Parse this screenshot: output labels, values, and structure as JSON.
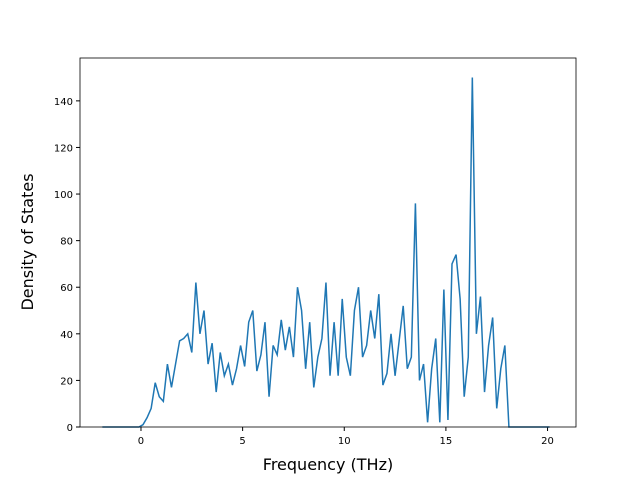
{
  "chart_data": {
    "type": "line",
    "x_label": "Frequency (THz)",
    "y_label": "Density of States",
    "x": [
      -1.9,
      -1.7,
      -1.5,
      -1.3,
      -1.1,
      -0.9,
      -0.7,
      -0.5,
      -0.3,
      -0.1,
      0.1,
      0.3,
      0.5,
      0.7,
      0.9,
      1.1,
      1.3,
      1.5,
      1.7,
      1.9,
      2.1,
      2.3,
      2.5,
      2.7,
      2.9,
      3.1,
      3.3,
      3.5,
      3.7,
      3.9,
      4.1,
      4.3,
      4.5,
      4.7,
      4.9,
      5.1,
      5.3,
      5.5,
      5.7,
      5.9,
      6.1,
      6.3,
      6.5,
      6.7,
      6.9,
      7.1,
      7.3,
      7.5,
      7.7,
      7.9,
      8.1,
      8.3,
      8.5,
      8.7,
      8.9,
      9.1,
      9.3,
      9.5,
      9.7,
      9.9,
      10.1,
      10.3,
      10.5,
      10.7,
      10.9,
      11.1,
      11.3,
      11.5,
      11.7,
      11.9,
      12.1,
      12.3,
      12.5,
      12.7,
      12.9,
      13.1,
      13.3,
      13.5,
      13.7,
      13.9,
      14.1,
      14.3,
      14.5,
      14.7,
      14.9,
      15.1,
      15.3,
      15.5,
      15.7,
      15.9,
      16.1,
      16.3,
      16.5,
      16.7,
      16.9,
      17.1,
      17.3,
      17.5,
      17.7,
      17.9,
      18.1,
      18.3,
      18.5,
      18.7,
      18.9,
      19.1,
      19.3,
      19.5,
      19.7,
      19.9,
      20.1
    ],
    "series": [
      {
        "color": "#1f77b4",
        "values": [
          0,
          0,
          0,
          0,
          0,
          0,
          0,
          0,
          0,
          0,
          1,
          4,
          8,
          19,
          13,
          11,
          27,
          17,
          27,
          37,
          38,
          40,
          32,
          62,
          40,
          50,
          27,
          36,
          15,
          32,
          22,
          27,
          18,
          25,
          35,
          26,
          45,
          50,
          24,
          31,
          45,
          13,
          35,
          31,
          46,
          33,
          43,
          30,
          60,
          50,
          25,
          45,
          17,
          30,
          38,
          62,
          22,
          45,
          22,
          55,
          30,
          22,
          50,
          60,
          30,
          35,
          50,
          38,
          57,
          18,
          23,
          40,
          22,
          37,
          52,
          25,
          30,
          96,
          20,
          27,
          2,
          25,
          38,
          2,
          59,
          3,
          70,
          74,
          55,
          13,
          30,
          150,
          40,
          56,
          15,
          35,
          47,
          8,
          25,
          35,
          0,
          0,
          0,
          0,
          0,
          0,
          0,
          0,
          0,
          0,
          0
        ]
      }
    ],
    "xlim": [
      -3.0,
      21.4
    ],
    "xticks": [
      0,
      5,
      10,
      15,
      20
    ],
    "ylim": [
      0,
      158.4
    ],
    "yticks": [
      0,
      20,
      40,
      60,
      80,
      100,
      120,
      140
    ]
  }
}
